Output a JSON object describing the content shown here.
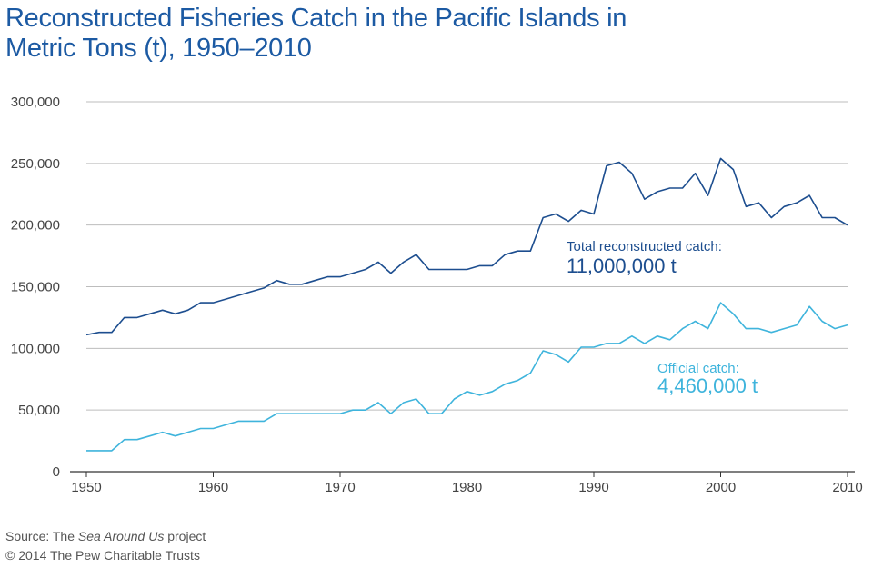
{
  "title_lines": [
    "Reconstructed Fisheries Catch in the Pacific Islands in",
    "Metric Tons (t), 1950–2010"
  ],
  "footer": {
    "source_prefix": "Source: The ",
    "source_italic": "Sea Around Us",
    "source_suffix": " project",
    "copyright": "© 2014 The Pew Charitable Trusts"
  },
  "colors": {
    "title": "#1c5aa3",
    "total": "#1d4e8f",
    "official": "#3fb4dc",
    "grid": "#bdbdbd",
    "axis": "#333333"
  },
  "chart_data": {
    "type": "line",
    "x": [
      1950,
      1951,
      1952,
      1953,
      1954,
      1955,
      1956,
      1957,
      1958,
      1959,
      1960,
      1961,
      1962,
      1963,
      1964,
      1965,
      1966,
      1967,
      1968,
      1969,
      1970,
      1971,
      1972,
      1973,
      1974,
      1975,
      1976,
      1977,
      1978,
      1979,
      1980,
      1981,
      1982,
      1983,
      1984,
      1985,
      1986,
      1987,
      1988,
      1989,
      1990,
      1991,
      1992,
      1993,
      1994,
      1995,
      1996,
      1997,
      1998,
      1999,
      2000,
      2001,
      2002,
      2003,
      2004,
      2005,
      2006,
      2007,
      2008,
      2009,
      2010
    ],
    "xlim": [
      1950,
      2010
    ],
    "ylim": [
      0,
      300000
    ],
    "xticks": [
      "1950",
      "1960",
      "1970",
      "1980",
      "1990",
      "2000",
      "2010"
    ],
    "yticks": [
      "0",
      "50,000",
      "100,000",
      "150,000",
      "200,000",
      "250,000",
      "300,000"
    ],
    "ytick_values": [
      0,
      50000,
      100000,
      150000,
      200000,
      250000,
      300000
    ],
    "grid": "horizontal",
    "series": [
      {
        "key": "total",
        "values": [
          111000,
          113000,
          113000,
          125000,
          125000,
          128000,
          131000,
          128000,
          131000,
          137000,
          137000,
          140000,
          143000,
          146000,
          149000,
          155000,
          152000,
          152000,
          155000,
          158000,
          158000,
          161000,
          164000,
          170000,
          161000,
          170000,
          176000,
          164000,
          164000,
          164000,
          164000,
          167000,
          167000,
          176000,
          179000,
          179000,
          206000,
          209000,
          203000,
          212000,
          209000,
          248000,
          251000,
          242000,
          221000,
          227000,
          230000,
          230000,
          242000,
          224000,
          254000,
          245000,
          215000,
          218000,
          206000,
          215000,
          218000,
          224000,
          206000,
          206000,
          200000
        ]
      },
      {
        "key": "official",
        "values": [
          17000,
          17000,
          17000,
          26000,
          26000,
          29000,
          32000,
          29000,
          32000,
          35000,
          35000,
          38000,
          41000,
          41000,
          41000,
          47000,
          47000,
          47000,
          47000,
          47000,
          47000,
          50000,
          50000,
          56000,
          47000,
          56000,
          59000,
          47000,
          47000,
          59000,
          65000,
          62000,
          65000,
          71000,
          74000,
          80000,
          98000,
          95000,
          89000,
          101000,
          101000,
          104000,
          104000,
          110000,
          104000,
          110000,
          107000,
          116000,
          122000,
          116000,
          137000,
          128000,
          116000,
          116000,
          113000,
          116000,
          119000,
          134000,
          122000,
          116000,
          119000
        ]
      }
    ],
    "annotations": [
      {
        "label": "Total reconstructed catch:",
        "value": "11,000,000 t",
        "series": "total"
      },
      {
        "label": "Official catch:",
        "value": "4,460,000 t",
        "series": "official"
      }
    ]
  }
}
